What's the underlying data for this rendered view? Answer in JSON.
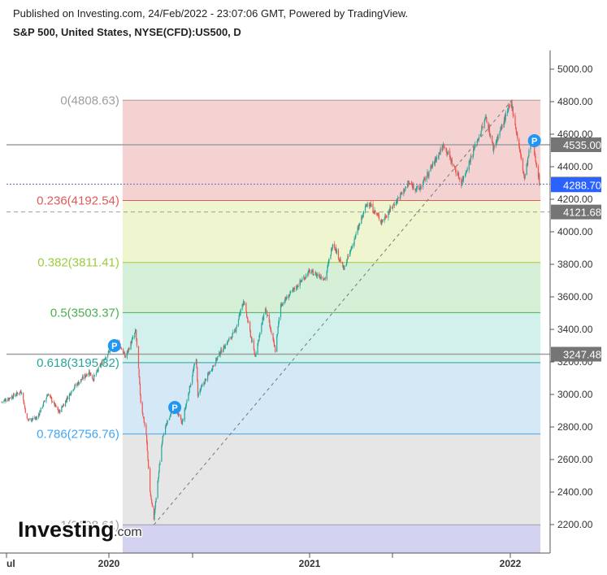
{
  "header": {
    "published": "Published on Investing.com, 24/Feb/2022 - 23:07:06 GMT, Powered by TradingView.",
    "symbol": "S&P 500, United States, NYSE(CFD):US500, D"
  },
  "watermark": {
    "brand": "Investing",
    "suffix": ".com"
  },
  "colors": {
    "up_candle": "#26a69a",
    "down_candle": "#ef5350",
    "price_line": "#9e9e9e",
    "label_bg": "#757575",
    "current_label_bg": "#2962ff",
    "event_marker": "#2196f3"
  },
  "chart_data": {
    "type": "candlestick",
    "title": "S&P 500, United States, NYSE(CFD):US500, D",
    "ylim": [
      2050,
      5100
    ],
    "y_ticks": [
      "5000.00",
      "4800.00",
      "4600.00",
      "4400.00",
      "4200.00",
      "4000.00",
      "3800.00",
      "3600.00",
      "3400.00",
      "3200.00",
      "3000.00",
      "2800.00",
      "2600.00",
      "2400.00",
      "2200.00"
    ],
    "x_ticks": [
      "ul",
      "2020",
      "2021",
      "2022"
    ],
    "x_range": [
      "2019-06-20",
      "2022-03-01"
    ],
    "fibonacci": {
      "start_date": "2020-01-26",
      "end_date": "2022-02-25",
      "levels": [
        {
          "label": "0(4808.63)",
          "price": 4808.63,
          "color": "#9e9e9e",
          "fill": "#f4d2d2"
        },
        {
          "label": "0.236(4192.54)",
          "price": 4192.54,
          "color": "#e05a5a",
          "fill": "#eef5cf"
        },
        {
          "label": "0.382(3811.41)",
          "price": 3811.41,
          "color": "#9ccc3c",
          "fill": "#d6f0d8"
        },
        {
          "label": "0.5(3503.37)",
          "price": 3503.37,
          "color": "#4caf50",
          "fill": "#d2f1ec"
        },
        {
          "label": "0.618(3195.32)",
          "price": 3195.32,
          "color": "#26a69a",
          "fill": "#d4e8f5"
        },
        {
          "label": "0.786(2756.76)",
          "price": 2756.76,
          "color": "#42a5f5",
          "fill": "#e6e6e6"
        },
        {
          "label": "1(2198.61)",
          "price": 2198.61,
          "color": "#9e9e9e",
          "fill": "#d3d3f1"
        }
      ],
      "trend_line": [
        {
          "date": "2020-03-23",
          "price": 2198.61
        },
        {
          "date": "2022-01-04",
          "price": 4808.63
        }
      ]
    },
    "price_lines": [
      {
        "label": "4535.00",
        "price": 4535,
        "style": "solid",
        "color": "#9e9e9e",
        "label_bg": "#757575"
      },
      {
        "label": "4293.13",
        "price": 4293.13,
        "style": "dotted",
        "color": "#5c6bc0",
        "label_bg": "#757575"
      },
      {
        "label": "4288.70",
        "price": 4288.7,
        "style": "none",
        "color": "#2962ff",
        "label_bg": "#2962ff"
      },
      {
        "label": "4121.68",
        "price": 4121.68,
        "style": "dashed",
        "color": "#9e9e9e",
        "label_bg": "#757575"
      },
      {
        "label": "3247.48",
        "price": 3247.48,
        "style": "solid",
        "color": "#9e9e9e",
        "label_bg": "#757575"
      }
    ],
    "event_markers": [
      {
        "label": "P",
        "date": "2020-01-11",
        "price": 3300
      },
      {
        "label": "P",
        "date": "2020-04-30",
        "price": 2920
      },
      {
        "label": "P",
        "date": "2022-02-14",
        "price": 4560
      }
    ],
    "price_path": [
      [
        "2019-06-20",
        2955
      ],
      [
        "2019-07-10",
        2990
      ],
      [
        "2019-07-26",
        3020
      ],
      [
        "2019-08-05",
        2845
      ],
      [
        "2019-08-23",
        2855
      ],
      [
        "2019-09-12",
        3005
      ],
      [
        "2019-10-02",
        2890
      ],
      [
        "2019-10-28",
        3040
      ],
      [
        "2019-11-26",
        3140
      ],
      [
        "2019-12-03",
        3095
      ],
      [
        "2019-12-27",
        3240
      ],
      [
        "2020-01-17",
        3330
      ],
      [
        "2020-01-31",
        3230
      ],
      [
        "2020-02-19",
        3390
      ],
      [
        "2020-02-28",
        2955
      ],
      [
        "2020-03-09",
        2750
      ],
      [
        "2020-03-16",
        2400
      ],
      [
        "2020-03-23",
        2237
      ],
      [
        "2020-04-08",
        2750
      ],
      [
        "2020-04-29",
        2940
      ],
      [
        "2020-05-13",
        2820
      ],
      [
        "2020-06-08",
        3230
      ],
      [
        "2020-06-11",
        3000
      ],
      [
        "2020-07-21",
        3255
      ],
      [
        "2020-08-18",
        3390
      ],
      [
        "2020-09-02",
        3580
      ],
      [
        "2020-09-23",
        3235
      ],
      [
        "2020-10-12",
        3535
      ],
      [
        "2020-10-30",
        3270
      ],
      [
        "2020-11-09",
        3550
      ],
      [
        "2020-12-31",
        3756
      ],
      [
        "2021-01-29",
        3714
      ],
      [
        "2021-02-12",
        3934
      ],
      [
        "2021-03-04",
        3768
      ],
      [
        "2021-04-16",
        4185
      ],
      [
        "2021-05-12",
        4063
      ],
      [
        "2021-06-30",
        4297
      ],
      [
        "2021-07-19",
        4258
      ],
      [
        "2021-09-02",
        4537
      ],
      [
        "2021-10-04",
        4300
      ],
      [
        "2021-11-18",
        4705
      ],
      [
        "2021-12-01",
        4513
      ],
      [
        "2022-01-03",
        4796
      ],
      [
        "2022-01-27",
        4326
      ],
      [
        "2022-02-09",
        4587
      ],
      [
        "2022-02-24",
        4288.7
      ]
    ]
  }
}
